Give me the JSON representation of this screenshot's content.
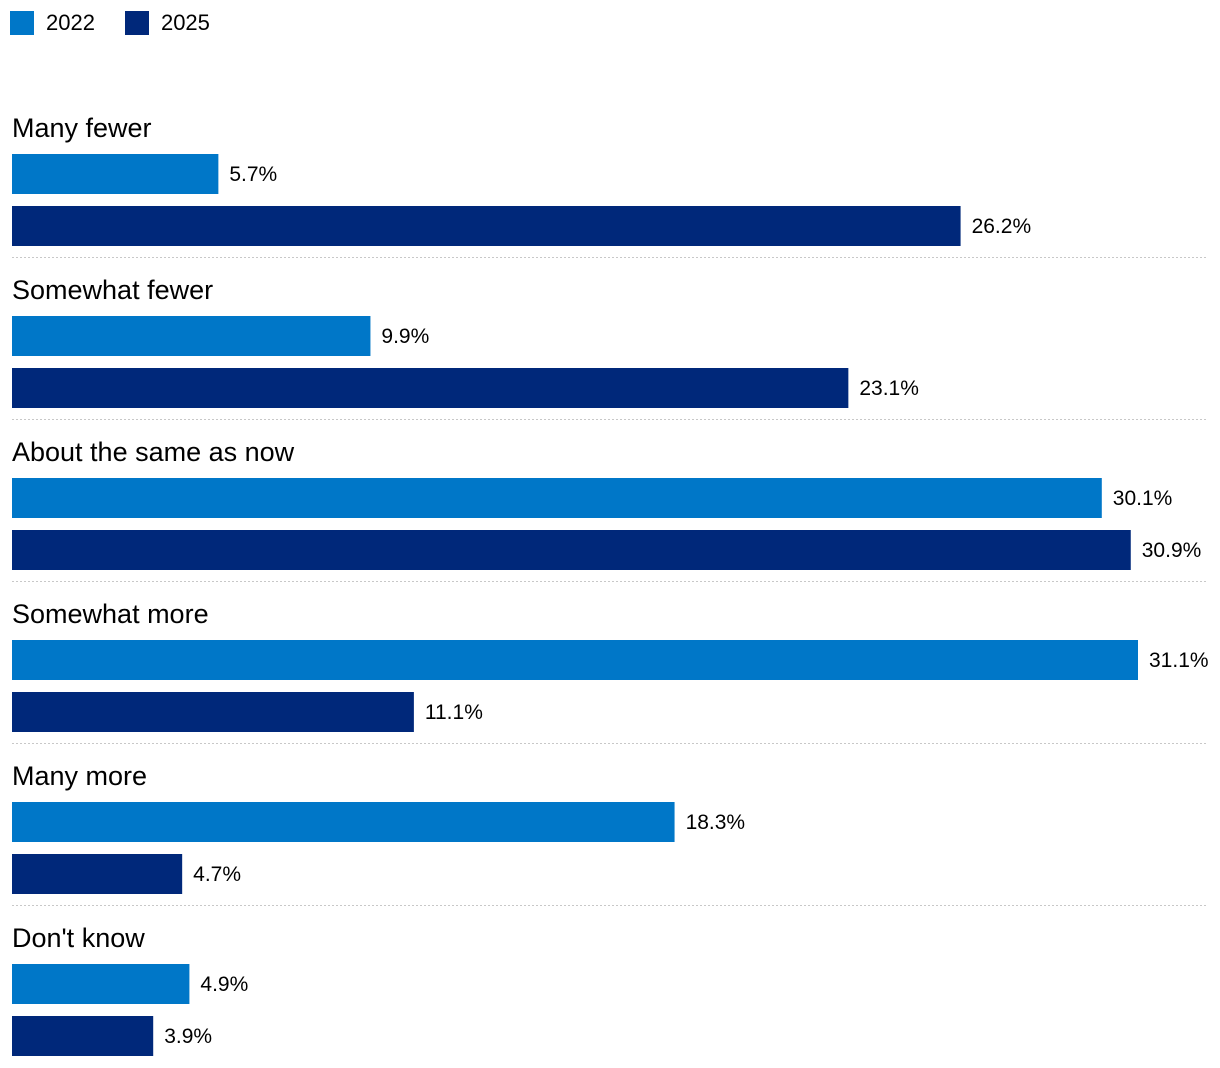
{
  "chart_data": {
    "type": "bar",
    "orientation": "horizontal",
    "categories": [
      "Many fewer",
      "Somewhat fewer",
      "About the same as now",
      "Somewhat more",
      "Many more",
      "Don't know"
    ],
    "series": [
      {
        "name": "2022",
        "color": "#0077c8",
        "values": [
          5.7,
          9.9,
          30.1,
          31.1,
          18.3,
          4.9
        ],
        "labels": [
          "5.7%",
          "9.9%",
          "30.1%",
          "31.1%",
          "18.3%",
          "4.9%"
        ]
      },
      {
        "name": "2025",
        "color": "#00287a",
        "values": [
          26.2,
          23.1,
          30.9,
          11.1,
          4.7,
          3.9
        ],
        "labels": [
          "26.2%",
          "23.1%",
          "30.9%",
          "11.1%",
          "4.7%",
          "3.9%"
        ]
      }
    ],
    "title": "",
    "xlabel": "",
    "ylabel": "",
    "xlim": [
      0,
      31.1
    ],
    "legend_position": "top-left",
    "unit": "%"
  }
}
